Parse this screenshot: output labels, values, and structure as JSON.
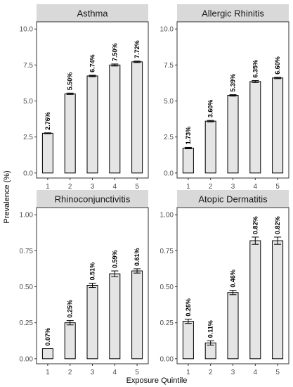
{
  "chart_data": {
    "type": "bar",
    "xlabel": "Exposure Quintile",
    "ylabel": "Prevalence (%)",
    "categories": [
      "1",
      "2",
      "3",
      "4",
      "5"
    ],
    "panels": [
      {
        "title": "Asthma",
        "values": [
          2.76,
          5.5,
          6.74,
          7.5,
          7.72
        ],
        "labels": [
          "2.76%",
          "5.50%",
          "6.74%",
          "7.50%",
          "7.72%"
        ],
        "errors": [
          0.03,
          0.05,
          0.05,
          0.07,
          0.05
        ],
        "ylim": [
          -0.35,
          10.5
        ],
        "yticks": [
          "0.0",
          "2.5",
          "5.0",
          "7.5",
          "10.0"
        ],
        "ytick_values": [
          0,
          2.5,
          5,
          7.5,
          10
        ]
      },
      {
        "title": "Allergic Rhinitis",
        "values": [
          1.73,
          3.6,
          5.39,
          6.35,
          6.6
        ],
        "labels": [
          "1.73%",
          "3.60%",
          "5.39%",
          "6.35%",
          "6.60%"
        ],
        "errors": [
          0.05,
          0.05,
          0.05,
          0.07,
          0.05
        ],
        "ylim": [
          -0.35,
          10.5
        ],
        "yticks": [
          "0.0",
          "2.5",
          "5.0",
          "7.5",
          "10.0"
        ],
        "ytick_values": [
          0,
          2.5,
          5,
          7.5,
          10
        ]
      },
      {
        "title": "Rhinoconjunctivitis",
        "values": [
          0.07,
          0.25,
          0.51,
          0.59,
          0.61
        ],
        "labels": [
          "0.07%",
          "0.25%",
          "0.51%",
          "0.59%",
          "0.61%"
        ],
        "errors": [
          0.0,
          0.015,
          0.015,
          0.02,
          0.015
        ],
        "ylim": [
          -0.035,
          1.05
        ],
        "yticks": [
          "0.00",
          "0.25",
          "0.50",
          "0.75",
          "1.00"
        ],
        "ytick_values": [
          0,
          0.25,
          0.5,
          0.75,
          1.0
        ]
      },
      {
        "title": "Atopic Dermatitis",
        "values": [
          0.26,
          0.11,
          0.46,
          0.82,
          0.82
        ],
        "labels": [
          "0.26%",
          "0.11%",
          "0.46%",
          "0.82%",
          "0.82%"
        ],
        "errors": [
          0.015,
          0.015,
          0.015,
          0.025,
          0.025
        ],
        "ylim": [
          -0.035,
          1.05
        ],
        "yticks": [
          "0.00",
          "0.25",
          "0.50",
          "0.75",
          "1.00"
        ],
        "ytick_values": [
          0,
          0.25,
          0.5,
          0.75,
          1.0
        ]
      }
    ],
    "colors": {
      "bar_fill": "#e5e5e5",
      "bar_stroke": "#000000",
      "strip_fill": "#d9d9d9",
      "panel_border": "#333333",
      "tick": "#333333"
    }
  }
}
